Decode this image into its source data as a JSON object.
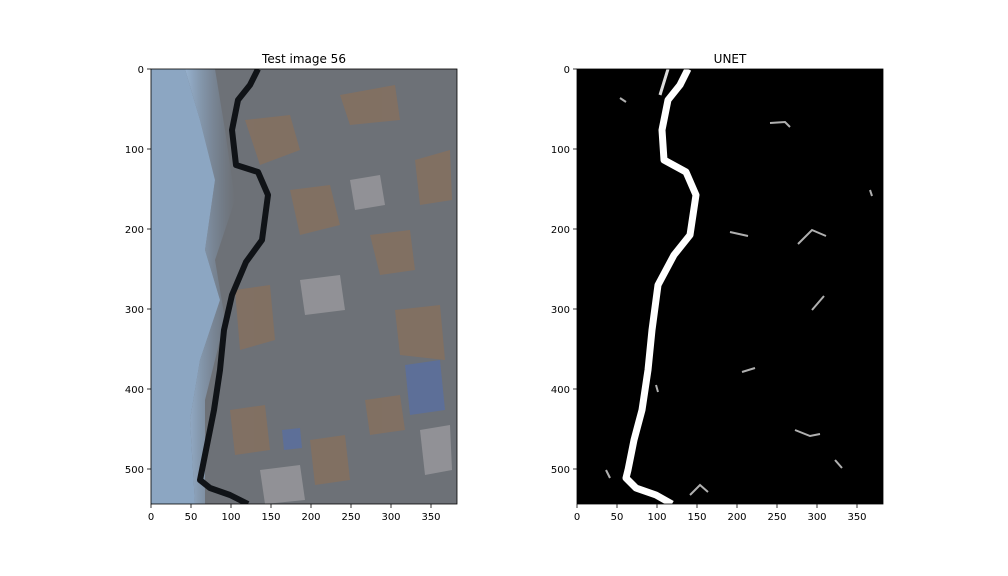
{
  "panels": [
    {
      "title": "Test image 56",
      "x_ticks": [
        "0",
        "50",
        "100",
        "150",
        "200",
        "250",
        "300",
        "350"
      ],
      "y_ticks": [
        "0",
        "100",
        "200",
        "300",
        "400",
        "500"
      ],
      "content": "photo of cracked asphalt with a dark crack running top to bottom"
    },
    {
      "title": "UNET",
      "x_ticks": [
        "0",
        "50",
        "100",
        "150",
        "200",
        "250",
        "300",
        "350"
      ],
      "y_ticks": [
        "0",
        "100",
        "200",
        "300",
        "400",
        "500"
      ],
      "content": "binary crack segmentation mask, white crack on black background"
    }
  ],
  "colors": {
    "asphalt": "#6f7379",
    "crack": "#111418",
    "paint": "#8fa8c4",
    "mask_bg": "#000000",
    "mask_fg": "#ffffff"
  }
}
